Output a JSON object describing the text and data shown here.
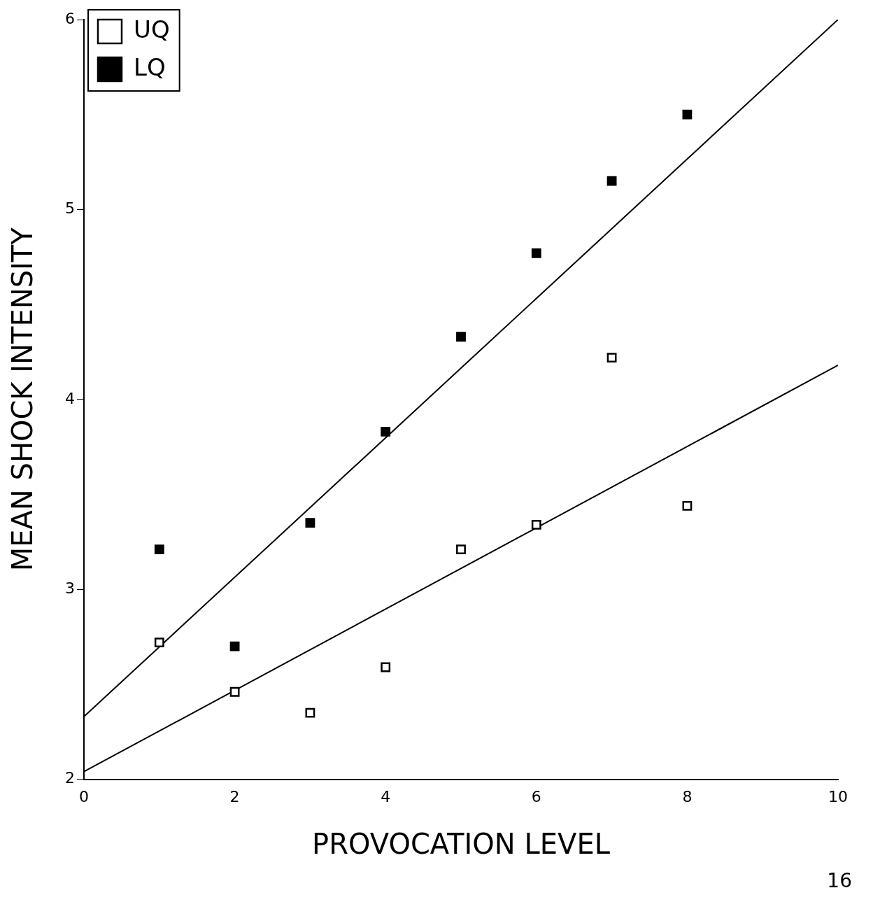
{
  "chart_data": {
    "type": "scatter",
    "xlabel": "PROVOCATION LEVEL",
    "ylabel": "MEAN SHOCK INTENSITY",
    "xlim": [
      0,
      10
    ],
    "ylim": [
      2,
      6
    ],
    "xticks": [
      0,
      2,
      4,
      6,
      8,
      10
    ],
    "yticks": [
      2,
      3,
      4,
      5,
      6
    ],
    "grid": false,
    "legend": "top left",
    "annotations": [
      "16"
    ],
    "series": [
      {
        "name": "UQ",
        "color": "#ffffff",
        "marker": "square",
        "x": [
          1,
          2,
          3,
          4,
          5,
          6,
          7,
          8
        ],
        "values": [
          2.72,
          2.46,
          2.35,
          2.59,
          3.21,
          3.34,
          4.22,
          3.44
        ]
      },
      {
        "name": "LQ",
        "color": "#000000",
        "marker": "square",
        "x": [
          1,
          2,
          3,
          4,
          5,
          6,
          7,
          8
        ],
        "values": [
          3.21,
          2.7,
          3.35,
          3.83,
          4.33,
          4.77,
          5.15,
          5.5
        ]
      },
      {
        "type": "line",
        "color": "#000000",
        "marker": "none",
        "x": [
          0,
          10
        ],
        "values": [
          2.04,
          4.18
        ]
      },
      {
        "type": "line",
        "color": "#000000",
        "marker": "none",
        "x": [
          0,
          10
        ],
        "values": [
          2.33,
          6.0
        ]
      }
    ]
  }
}
